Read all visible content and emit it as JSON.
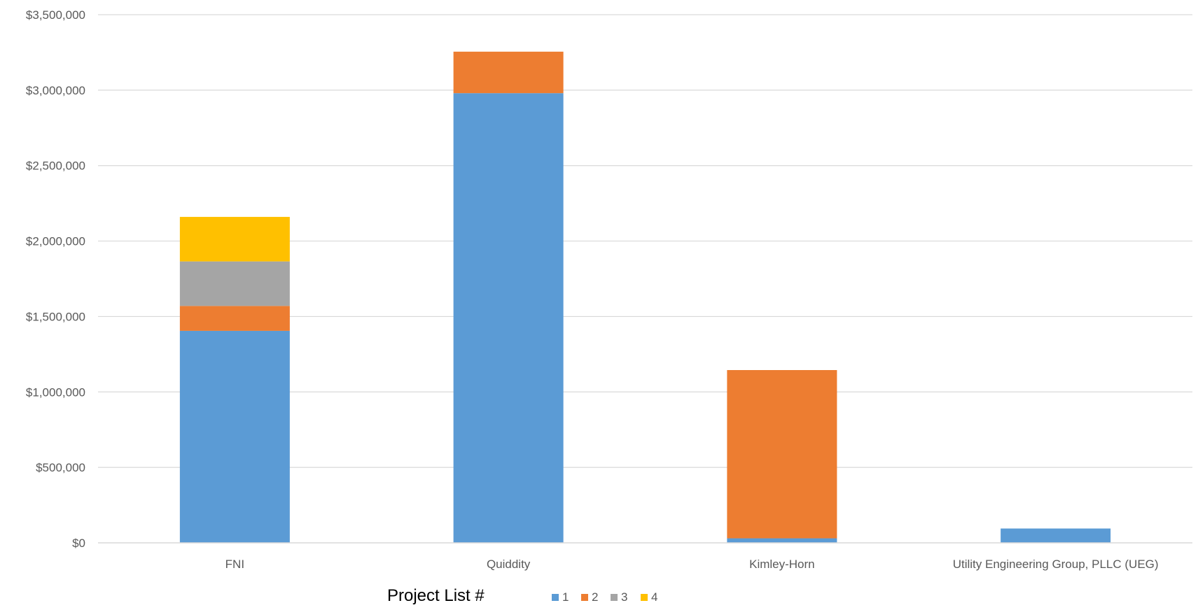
{
  "chart_data": {
    "type": "bar",
    "stacked": true,
    "categories": [
      "FNI",
      "Quiddity",
      "Kimley-Horn",
      "Utility Engineering Group, PLLC (UEG)"
    ],
    "series": [
      {
        "name": "1",
        "color": "#5B9BD5",
        "values": [
          1405000,
          2980000,
          30000,
          95000
        ]
      },
      {
        "name": "2",
        "color": "#ED7D31",
        "values": [
          165000,
          275000,
          1115000,
          0
        ]
      },
      {
        "name": "3",
        "color": "#A5A5A5",
        "values": [
          295000,
          0,
          0,
          0
        ]
      },
      {
        "name": "4",
        "color": "#FFC000",
        "values": [
          295000,
          0,
          0,
          0
        ]
      }
    ],
    "ylim": [
      0,
      3500000
    ],
    "y_ticks": [
      0,
      500000,
      1000000,
      1500000,
      2000000,
      2500000,
      3000000,
      3500000
    ],
    "y_tick_labels": [
      "$0",
      "$500,000",
      "$1,000,000",
      "$1,500,000",
      "$2,000,000",
      "$2,500,000",
      "$3,000,000",
      "$3,500,000"
    ],
    "grid": true,
    "gridline_color": "#D9D9D9",
    "legend": {
      "title": "Project List #",
      "position": "bottom"
    }
  }
}
